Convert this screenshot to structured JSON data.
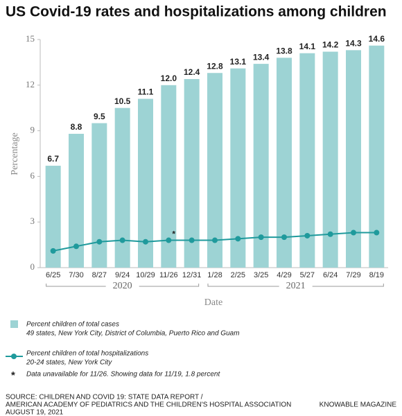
{
  "chart_data": {
    "type": "bar",
    "title": "US Covid-19 rates and hospitalizations among children",
    "categories": [
      "6/25",
      "7/30",
      "8/27",
      "9/24",
      "10/29",
      "11/26",
      "12/31",
      "1/28",
      "2/25",
      "3/25",
      "4/29",
      "5/27",
      "6/24",
      "7/29",
      "8/19"
    ],
    "year_groups": [
      "2020",
      "2021"
    ],
    "series": [
      {
        "name": "Percent children of total cases",
        "subtitle": "49 states, New York City, District of Columbia, Puerto Rico and Guam",
        "type": "bar",
        "color": "#9dd3d4",
        "values": [
          6.7,
          8.8,
          9.5,
          10.5,
          11.1,
          12.0,
          12.4,
          12.8,
          13.1,
          13.4,
          13.8,
          14.1,
          14.2,
          14.3,
          14.6
        ],
        "value_labels": [
          "6.7",
          "8.8",
          "9.5",
          "10.5",
          "11.1",
          "12.0",
          "12.4",
          "12.8",
          "13.1",
          "13.4",
          "13.8",
          "14.1",
          "14.2",
          "14.3",
          "14.6"
        ]
      },
      {
        "name": "Percent children of total hospitalizations",
        "subtitle": "20-24 states, New York City",
        "type": "line",
        "color": "#1f9a9c",
        "values": [
          1.1,
          1.4,
          1.7,
          1.8,
          1.7,
          1.8,
          1.8,
          1.8,
          1.9,
          2.0,
          2.0,
          2.1,
          2.2,
          2.3,
          2.3
        ]
      }
    ],
    "ylim": [
      0,
      15
    ],
    "yticks": [
      0,
      3,
      6,
      9,
      12,
      15
    ],
    "ylabel": "Percentage",
    "xlabel": "Date",
    "note": {
      "symbol": "*",
      "text": "Data unavailable for 11/26. Showing data for 11/19, 1.8 percent"
    }
  },
  "source": [
    "SOURCE: CHILDREN AND COVID 19: STATE DATA REPORT /",
    "AMERICAN ACADEMY OF PEDIATRICS AND THE CHILDREN'S HOSPITAL ASSOCIATION",
    "AUGUST 19, 2021"
  ],
  "credit": "KNOWABLE MAGAZINE"
}
